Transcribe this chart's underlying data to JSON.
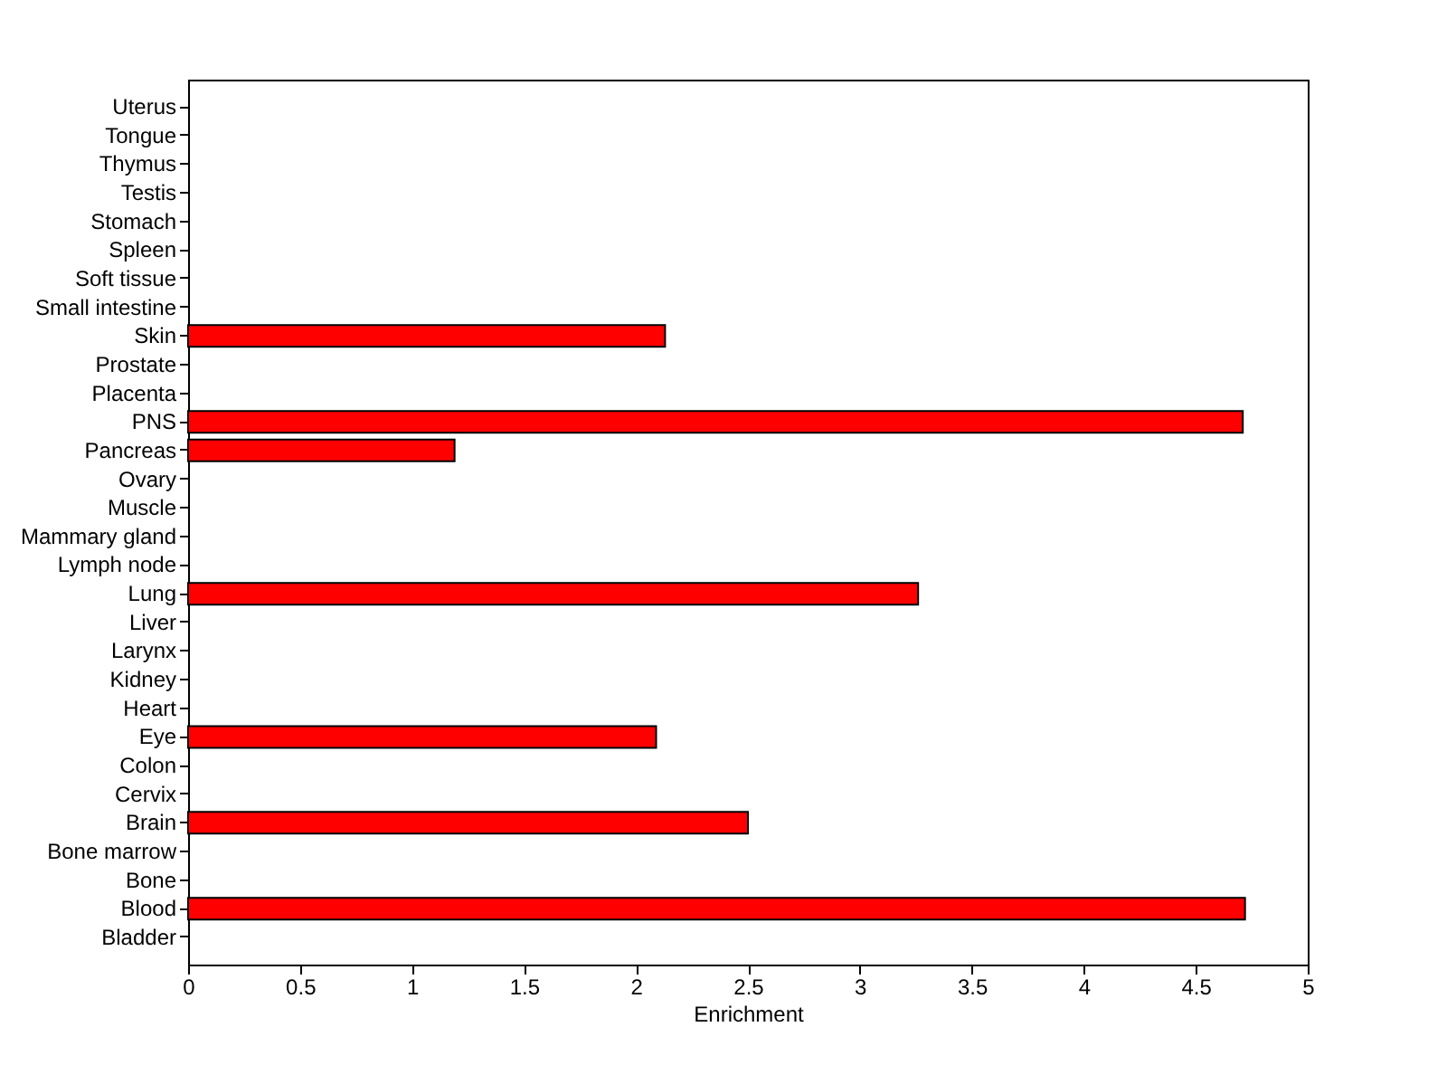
{
  "chart_data": {
    "type": "bar",
    "orientation": "horizontal",
    "xlabel": "Enrichment",
    "categories": [
      "Uterus",
      "Tongue",
      "Thymus",
      "Testis",
      "Stomach",
      "Spleen",
      "Soft tissue",
      "Small intestine",
      "Skin",
      "Prostate",
      "Placenta",
      "PNS",
      "Pancreas",
      "Ovary",
      "Muscle",
      "Mammary gland",
      "Lymph node",
      "Lung",
      "Liver",
      "Larynx",
      "Kidney",
      "Heart",
      "Eye",
      "Colon",
      "Cervix",
      "Brain",
      "Bone marrow",
      "Bone",
      "Blood",
      "Bladder"
    ],
    "values": [
      0,
      0,
      0,
      0,
      0,
      0,
      0,
      0,
      2.13,
      0,
      0,
      4.71,
      1.19,
      0,
      0,
      0,
      0,
      3.26,
      0,
      0,
      0,
      0,
      2.09,
      0,
      0,
      2.5,
      0,
      0,
      4.72,
      0
    ],
    "color": "#ff0000",
    "xlim": [
      0,
      5
    ],
    "xticks": [
      0,
      0.5,
      1,
      1.5,
      2,
      2.5,
      3,
      3.5,
      4,
      4.5,
      5
    ],
    "grid": false
  }
}
